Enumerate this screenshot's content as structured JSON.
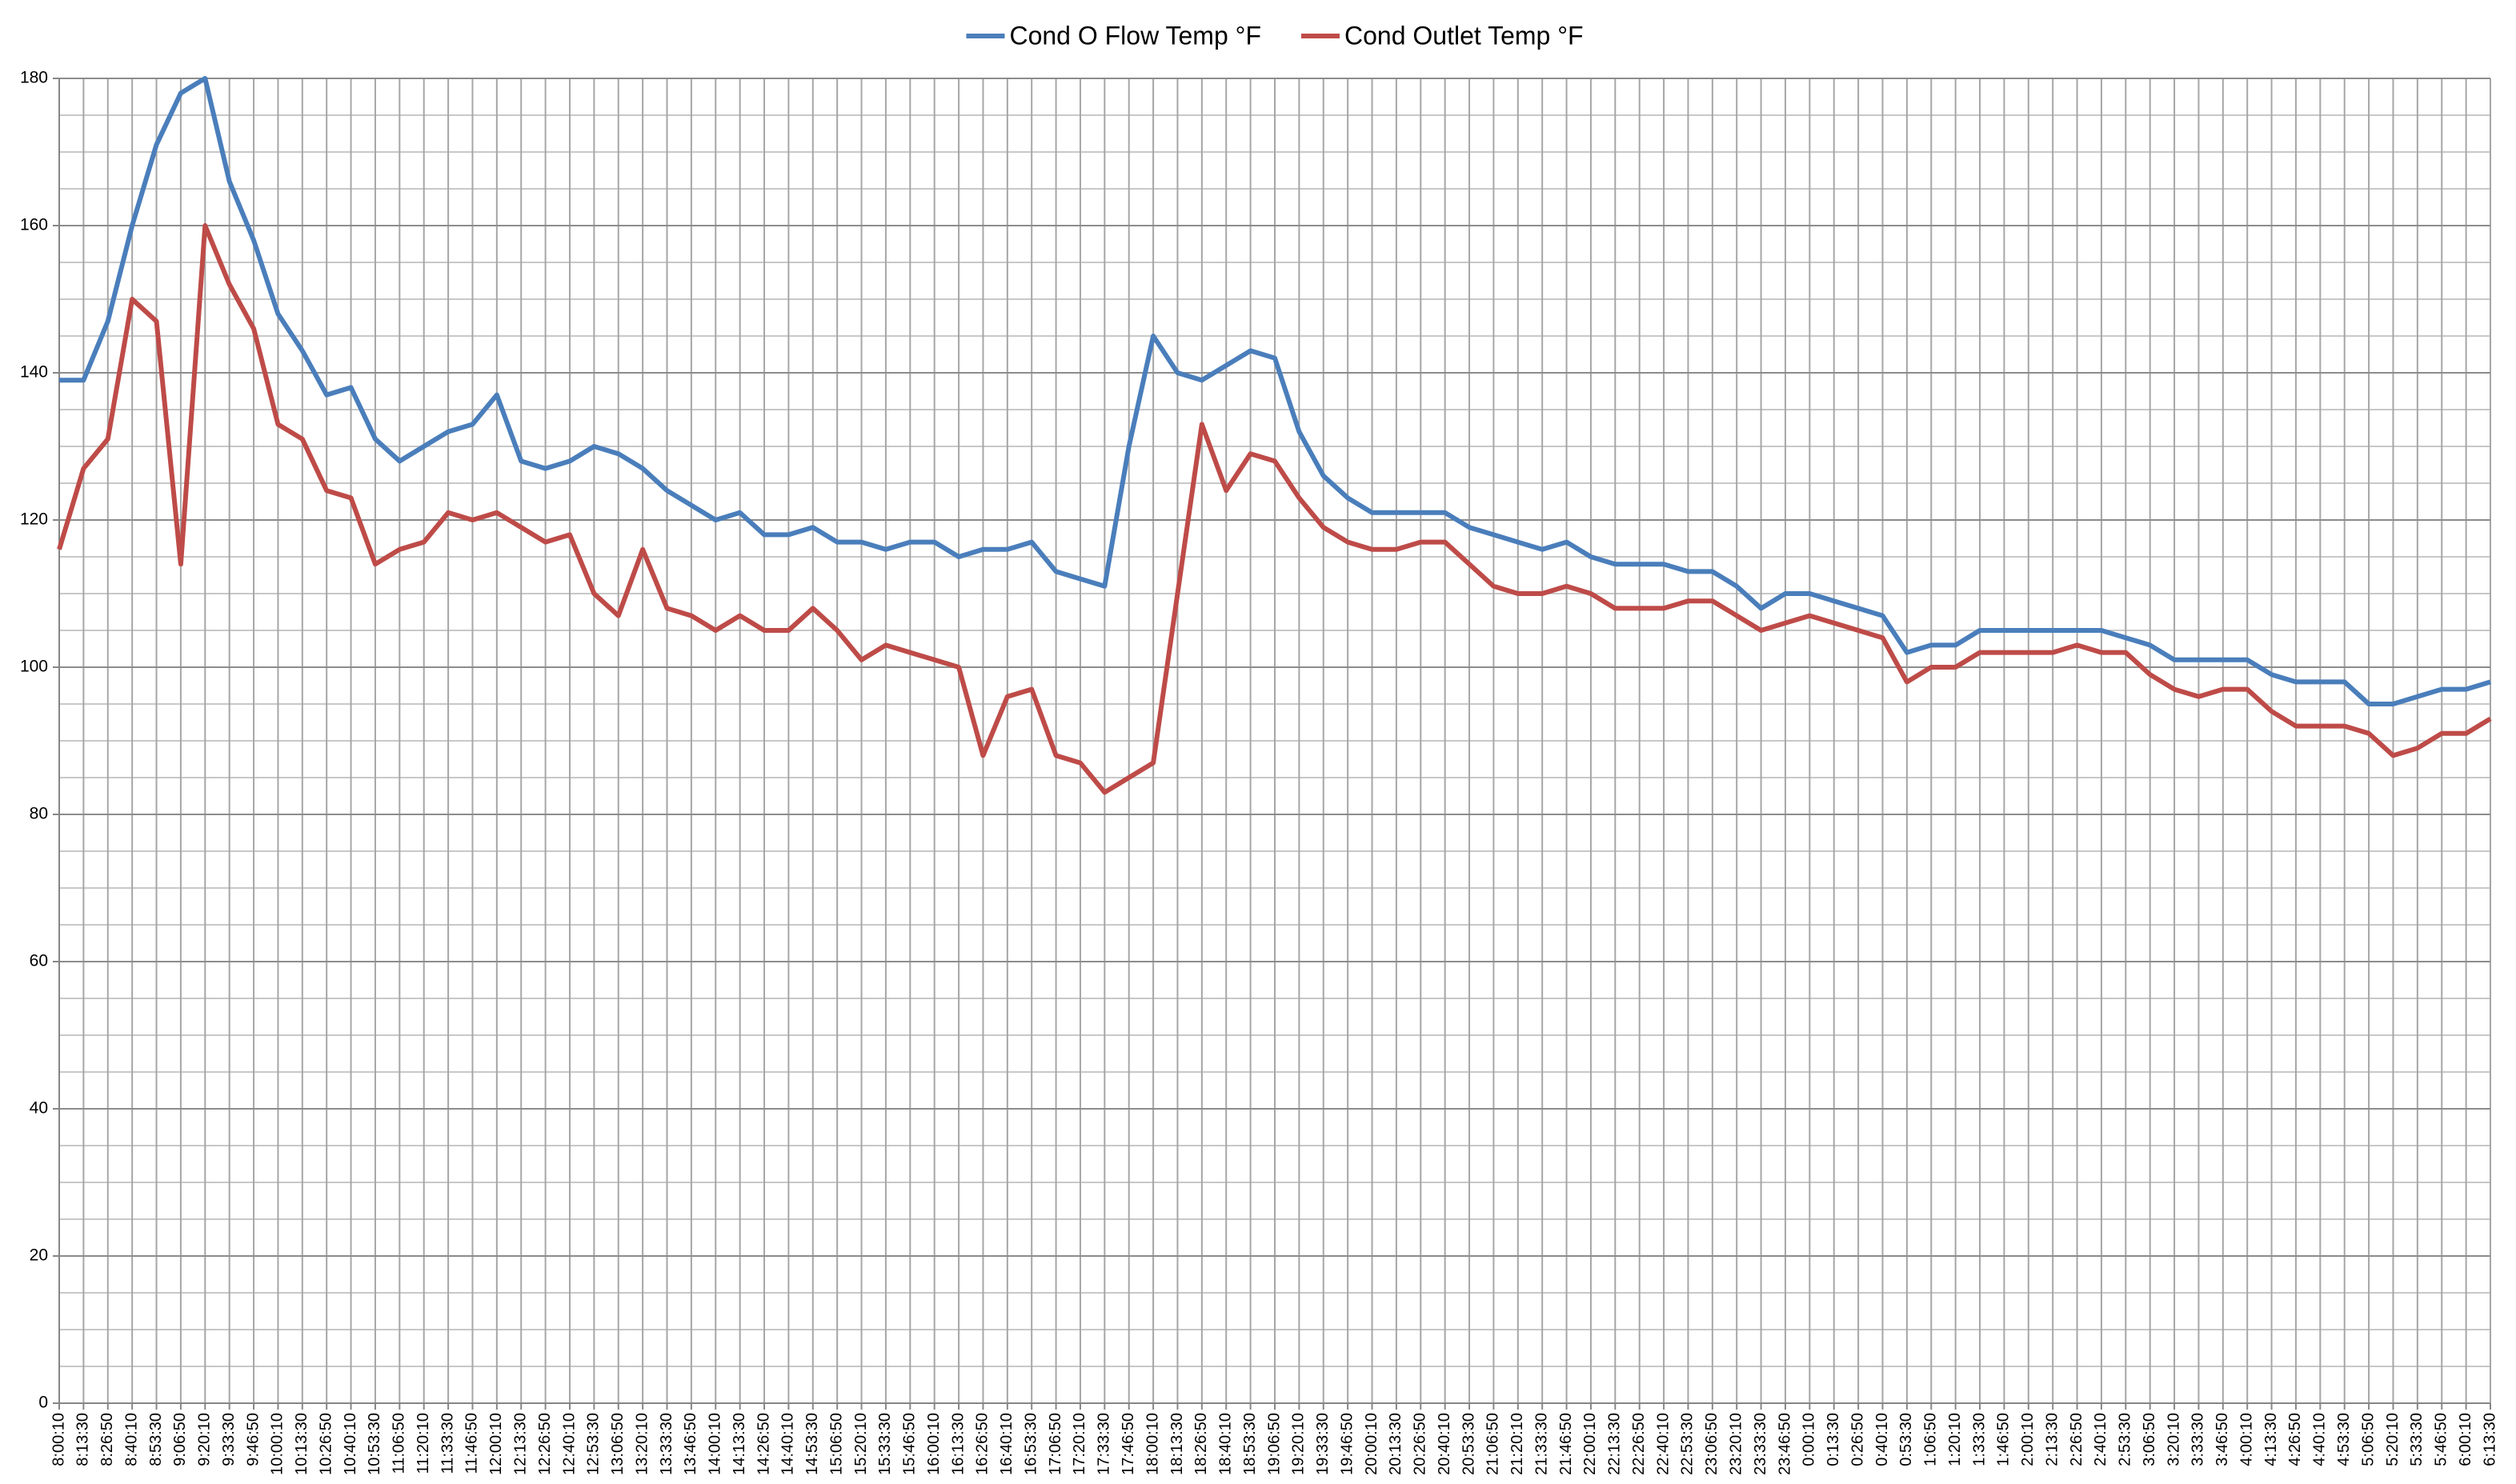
{
  "chart_data": {
    "type": "line",
    "categories": [
      "8:00:10",
      "8:13:30",
      "8:26:50",
      "8:40:10",
      "8:53:30",
      "9:06:50",
      "9:20:10",
      "9:33:30",
      "9:46:50",
      "10:00:10",
      "10:13:30",
      "10:26:50",
      "10:40:10",
      "10:53:30",
      "11:06:50",
      "11:20:10",
      "11:33:30",
      "11:46:50",
      "12:00:10",
      "12:13:30",
      "12:26:50",
      "12:40:10",
      "12:53:30",
      "13:06:50",
      "13:20:10",
      "13:33:30",
      "13:46:50",
      "14:00:10",
      "14:13:30",
      "14:26:50",
      "14:40:10",
      "14:53:30",
      "15:06:50",
      "15:20:10",
      "15:33:30",
      "15:46:50",
      "16:00:10",
      "16:13:30",
      "16:26:50",
      "16:40:10",
      "16:53:30",
      "17:06:50",
      "17:20:10",
      "17:33:30",
      "17:46:50",
      "18:00:10",
      "18:13:30",
      "18:26:50",
      "18:40:10",
      "18:53:30",
      "19:06:50",
      "19:20:10",
      "19:33:30",
      "19:46:50",
      "20:00:10",
      "20:13:30",
      "20:26:50",
      "20:40:10",
      "20:53:30",
      "21:06:50",
      "21:20:10",
      "21:33:30",
      "21:46:50",
      "22:00:10",
      "22:13:30",
      "22:26:50",
      "22:40:10",
      "22:53:30",
      "23:06:50",
      "23:20:10",
      "23:33:30",
      "23:46:50",
      "0:00:10",
      "0:13:30",
      "0:26:50",
      "0:40:10",
      "0:53:30",
      "1:06:50",
      "1:20:10",
      "1:33:30",
      "1:46:50",
      "2:00:10",
      "2:13:30",
      "2:26:50",
      "2:40:10",
      "2:53:30",
      "3:06:50",
      "3:20:10",
      "3:33:30",
      "3:46:50",
      "4:00:10",
      "4:13:30",
      "4:26:50",
      "4:40:10",
      "4:53:30",
      "5:06:50",
      "5:20:10",
      "5:33:30",
      "5:46:50",
      "6:00:10",
      "6:13:30"
    ],
    "series": [
      {
        "name": "Cond O Flow Temp °F",
        "color": "#4a7ebb",
        "values": [
          139,
          139,
          147,
          160,
          171,
          178,
          180,
          166,
          158,
          148,
          143,
          137,
          138,
          131,
          128,
          130,
          132,
          133,
          137,
          128,
          127,
          128,
          130,
          129,
          127,
          124,
          122,
          120,
          121,
          118,
          118,
          119,
          117,
          117,
          116,
          117,
          117,
          115,
          116,
          116,
          117,
          113,
          112,
          111,
          130,
          145,
          140,
          139,
          141,
          143,
          142,
          132,
          126,
          123,
          121,
          121,
          121,
          121,
          119,
          118,
          117,
          116,
          117,
          115,
          114,
          114,
          114,
          113,
          113,
          111,
          108,
          110,
          110,
          109,
          108,
          107,
          102,
          103,
          103,
          105,
          105,
          105,
          105,
          105,
          105,
          104,
          103,
          101,
          101,
          101,
          101,
          99,
          98,
          98,
          98,
          95,
          95,
          96,
          97,
          97,
          98
        ]
      },
      {
        "name": "Cond Outlet Temp °F",
        "color": "#be4b48",
        "values": [
          116,
          127,
          131,
          150,
          147,
          114,
          160,
          152,
          146,
          133,
          131,
          124,
          123,
          114,
          116,
          117,
          121,
          120,
          121,
          119,
          117,
          118,
          110,
          107,
          116,
          108,
          107,
          105,
          107,
          105,
          105,
          108,
          105,
          101,
          103,
          102,
          101,
          100,
          88,
          96,
          97,
          88,
          87,
          83,
          85,
          87,
          110,
          133,
          124,
          129,
          128,
          123,
          119,
          117,
          116,
          116,
          117,
          117,
          114,
          111,
          110,
          110,
          111,
          110,
          108,
          108,
          108,
          109,
          109,
          107,
          105,
          106,
          107,
          106,
          105,
          104,
          98,
          100,
          100,
          102,
          102,
          102,
          102,
          103,
          102,
          102,
          99,
          97,
          96,
          97,
          97,
          94,
          92,
          92,
          92,
          91,
          88,
          89,
          91,
          91,
          93
        ]
      }
    ],
    "ylim": [
      0,
      180
    ],
    "yticks": [
      0,
      20,
      40,
      60,
      80,
      100,
      120,
      140,
      160,
      180
    ],
    "y_minor_step": 5,
    "grid": true,
    "legend": "top"
  }
}
